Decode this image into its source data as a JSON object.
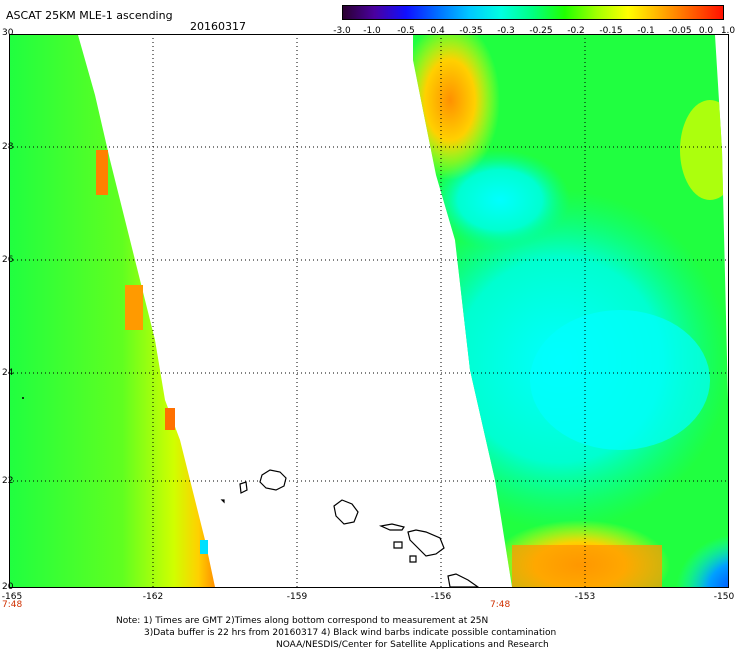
{
  "header": {
    "title": "ASCAT 25KM MLE-1 ascending",
    "date": "20160317"
  },
  "colorbar": {
    "labels": [
      "-3.0",
      "-1.0",
      "-0.5",
      "-0.4",
      "-0.35",
      "-0.3",
      "-0.25",
      "-0.2",
      "-0.15",
      "-0.1",
      "-0.05",
      "0.0",
      "1.0"
    ],
    "colors": [
      "#2a0030",
      "#4a00a0",
      "#1010ff",
      "#0070ff",
      "#00c8ff",
      "#00ffe0",
      "#00ff80",
      "#20ff00",
      "#a0ff00",
      "#ffff00",
      "#ffb000",
      "#ff6000",
      "#ff1000"
    ]
  },
  "map": {
    "lat_labels": [
      "30",
      "28",
      "26",
      "24",
      "22",
      "20"
    ],
    "lon_labels": [
      "-165",
      "-162",
      "-159",
      "-156",
      "-153",
      "-150"
    ],
    "pass_times": [
      "7:48",
      "7:48"
    ],
    "palette": {
      "blue": "#0050ff",
      "cyan": "#00ffff",
      "aqua": "#00ffb0",
      "green": "#10ff40",
      "lime": "#a0ff00",
      "yellow": "#ffff00",
      "orange": "#ffa000",
      "red": "#ff6000"
    }
  },
  "notes": {
    "line1": "Note: 1) Times are GMT 2)Times along bottom correspond to measurement at 25N",
    "line2": "3)Data buffer is 22 hrs from 20160317 4) Black wind barbs indicate possible contamination",
    "line3": "NOAA/NESDIS/Center for Satellite Applications and Research"
  }
}
